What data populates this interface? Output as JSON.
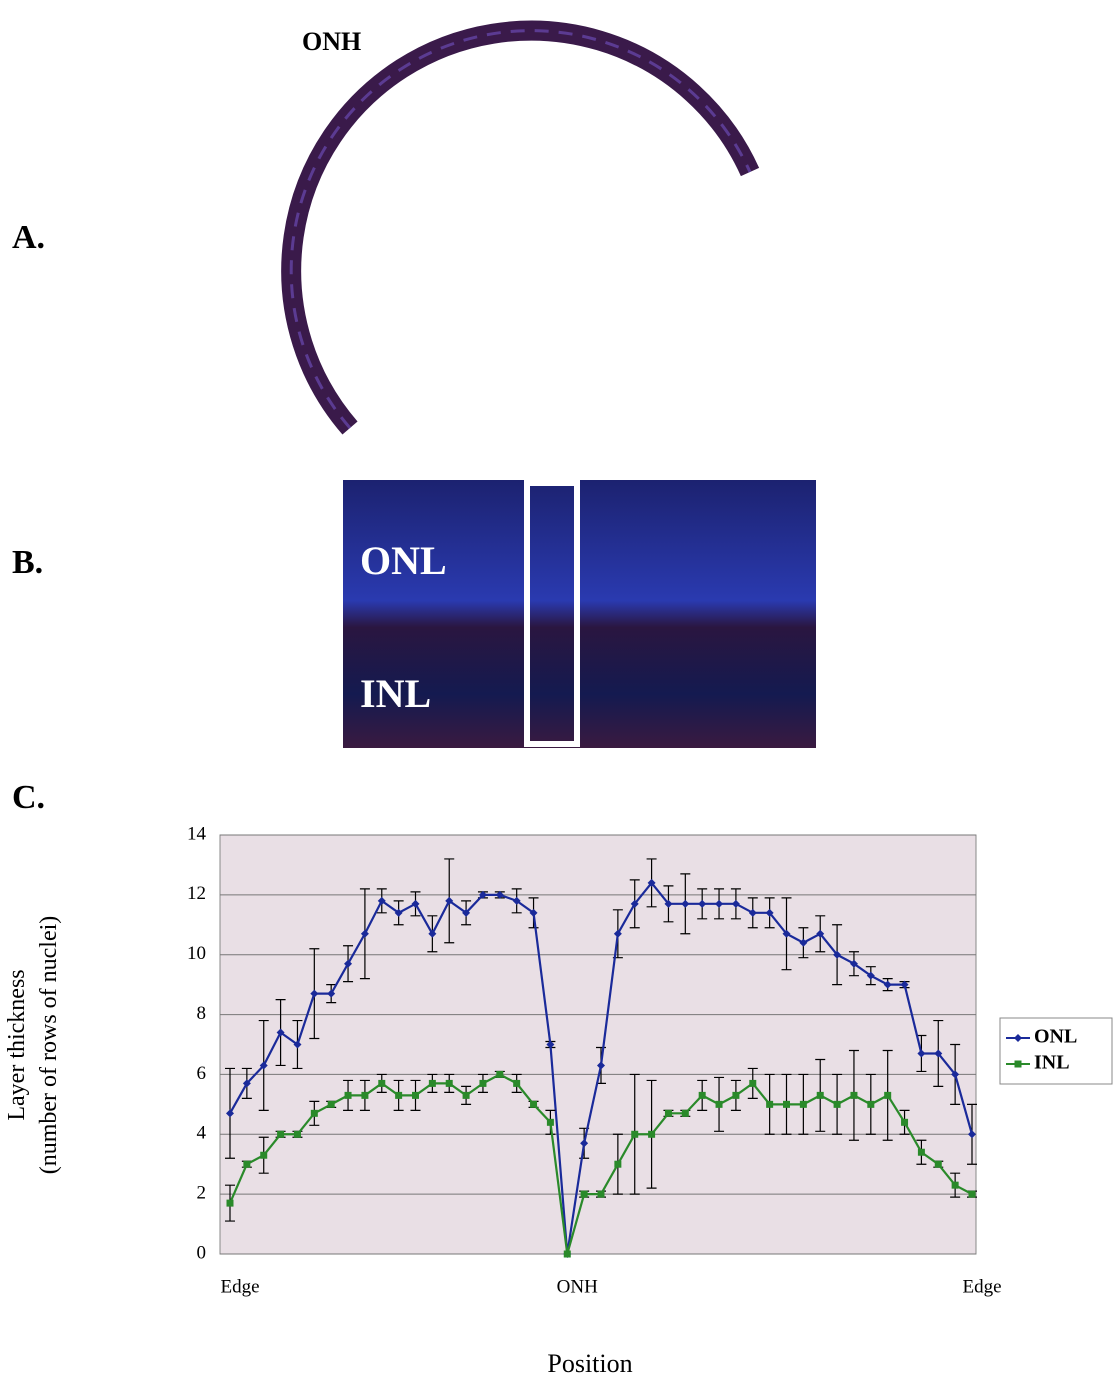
{
  "panels": {
    "a": {
      "label": "A.",
      "annotation": "ONH"
    },
    "b": {
      "label": "B.",
      "layers": [
        "ONL",
        "INL"
      ]
    },
    "c": {
      "label": "C."
    }
  },
  "chart_data": {
    "type": "line",
    "y_label": [
      "Layer thickness",
      "(number of rows of nuclei)"
    ],
    "x_label": "Position",
    "categories": [
      "Edge",
      null,
      null,
      null,
      null,
      null,
      null,
      null,
      null,
      null,
      null,
      null,
      null,
      null,
      null,
      null,
      null,
      null,
      null,
      null,
      "ONH",
      null,
      null,
      null,
      null,
      null,
      null,
      null,
      null,
      null,
      null,
      null,
      null,
      null,
      null,
      null,
      null,
      null,
      null,
      null,
      null,
      null,
      null,
      null,
      "Edge"
    ],
    "ylim": [
      0,
      14
    ],
    "yticks": [
      0,
      2,
      4,
      6,
      8,
      10,
      12,
      14
    ],
    "grid": true,
    "legend": "right",
    "series": [
      {
        "name": "ONL",
        "color": "#1a2a9a",
        "marker": "diamond",
        "values": [
          4.7,
          5.7,
          6.3,
          7.4,
          7.0,
          8.7,
          8.7,
          9.7,
          10.7,
          11.8,
          11.4,
          11.7,
          10.7,
          11.8,
          11.4,
          12.0,
          12.0,
          11.8,
          11.4,
          7.0,
          0,
          3.7,
          6.3,
          10.7,
          11.7,
          12.4,
          11.7,
          11.7,
          11.7,
          11.7,
          11.7,
          11.4,
          11.4,
          10.7,
          10.4,
          10.7,
          10.0,
          9.7,
          9.3,
          9.0,
          9.0,
          6.7,
          6.7,
          6.0,
          4.0
        ],
        "errors": [
          1.5,
          0.5,
          1.5,
          1.1,
          0.8,
          1.5,
          0.3,
          0.6,
          1.5,
          0.4,
          0.4,
          0.4,
          0.6,
          1.4,
          0.4,
          0.1,
          0.1,
          0.4,
          0.5,
          0.1,
          0,
          0.5,
          0.6,
          0.8,
          0.8,
          0.8,
          0.6,
          1.0,
          0.5,
          0.5,
          0.5,
          0.5,
          0.5,
          1.2,
          0.5,
          0.6,
          1.0,
          0.4,
          0.3,
          0.2,
          0.1,
          0.6,
          1.1,
          1.0,
          1.0
        ]
      },
      {
        "name": "INL",
        "color": "#2a8a2a",
        "marker": "square",
        "values": [
          1.7,
          3.0,
          3.3,
          4.0,
          4.0,
          4.7,
          5.0,
          5.3,
          5.3,
          5.7,
          5.3,
          5.3,
          5.7,
          5.7,
          5.3,
          5.7,
          6.0,
          5.7,
          5.0,
          4.4,
          0,
          2.0,
          2.0,
          3.0,
          4.0,
          4.0,
          4.7,
          4.7,
          5.3,
          5.0,
          5.3,
          5.7,
          5.0,
          5.0,
          5.0,
          5.3,
          5.0,
          5.3,
          5.0,
          5.3,
          4.4,
          3.4,
          3.0,
          2.3,
          2.0
        ],
        "errors": [
          0.6,
          0.1,
          0.6,
          0.1,
          0.1,
          0.4,
          0.1,
          0.5,
          0.5,
          0.3,
          0.5,
          0.5,
          0.3,
          0.3,
          0.3,
          0.3,
          0.1,
          0.3,
          0.1,
          0.4,
          0,
          0.1,
          0.1,
          1.0,
          2.0,
          1.8,
          0.1,
          0.1,
          0.5,
          0.9,
          0.5,
          0.5,
          1.0,
          1.0,
          1.0,
          1.2,
          1.0,
          1.5,
          1.0,
          1.5,
          0.4,
          0.4,
          0.1,
          0.4,
          0.1
        ]
      }
    ]
  }
}
